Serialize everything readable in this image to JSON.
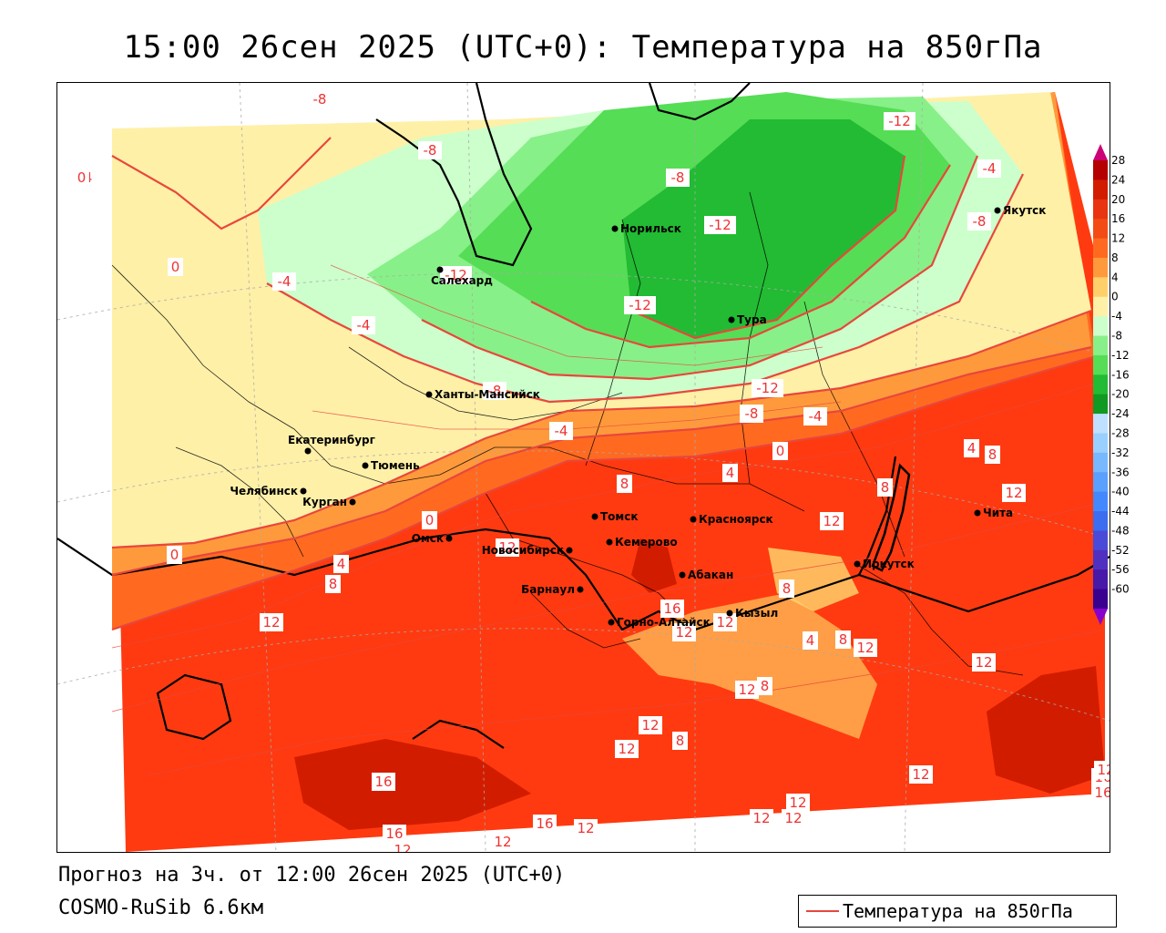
{
  "title": "15:00 26сен 2025 (UTC+0): Температура на 850гПа",
  "footer": {
    "forecast": "Прогноз на 3ч. от 12:00 26сен 2025 (UTC+0)",
    "model": "COSMO-RuSib 6.6км"
  },
  "legend": {
    "label": "Температура на 850гПа",
    "line_color": "#e8473c"
  },
  "colorbar": {
    "labels": [
      "28",
      "24",
      "20",
      "16",
      "12",
      "8",
      "4",
      "0",
      "-4",
      "-8",
      "-12",
      "-16",
      "-20",
      "-24",
      "-28",
      "-32",
      "-36",
      "-40",
      "-44",
      "-48",
      "-52",
      "-56",
      "-60"
    ],
    "colors": [
      "#b40000",
      "#d21c00",
      "#e83410",
      "#f24c14",
      "#ff6a20",
      "#ff9a3c",
      "#ffd06a",
      "#fff0a8",
      "#ccffcc",
      "#88f088",
      "#55dd55",
      "#22bb33",
      "#119922",
      "#c0e0ff",
      "#9ad0ff",
      "#78b8ff",
      "#5aa0ff",
      "#4488ff",
      "#3c6cf0",
      "#4a4ad8",
      "#5030c0",
      "#4818a8",
      "#3a0090"
    ],
    "top_arrow_color": "#cc0077",
    "bottom_arrow_color": "#8800cc"
  },
  "cities": [
    {
      "name": "Якутск"
    },
    {
      "name": "Норильск"
    },
    {
      "name": "Салехард"
    },
    {
      "name": "Тура"
    },
    {
      "name": "Ханты-Мансийск"
    },
    {
      "name": "Екатеринбург"
    },
    {
      "name": "Тюмень"
    },
    {
      "name": "Челябинск"
    },
    {
      "name": "Курган"
    },
    {
      "name": "Омск"
    },
    {
      "name": "Новосибирск"
    },
    {
      "name": "Томск"
    },
    {
      "name": "Кемерово"
    },
    {
      "name": "Красноярск"
    },
    {
      "name": "Абакан"
    },
    {
      "name": "Барнаул"
    },
    {
      "name": "Горно-Алтайск"
    },
    {
      "name": "Кызыл"
    },
    {
      "name": "Иркутск"
    },
    {
      "name": "Чита"
    }
  ],
  "contour_labels": [
    "-12",
    "-8",
    "-12",
    "-12",
    "-4",
    "-8",
    "-12",
    "-8",
    "-4",
    "-4",
    "-8",
    "0",
    "-4",
    "-8",
    "-12",
    "-8",
    "-4",
    "0",
    "-4",
    "0",
    "4",
    "8",
    "8",
    "4",
    "12",
    "8",
    "12",
    "4",
    "0",
    "0",
    "12",
    "12",
    "8",
    "16",
    "12",
    "12",
    "4",
    "8",
    "12",
    "12",
    "8",
    "8",
    "12",
    "12",
    "12",
    "12",
    "8",
    "16",
    "12",
    "16",
    "16",
    "16",
    "12",
    "12",
    "12",
    "12",
    "12",
    "12",
    "16"
  ]
}
